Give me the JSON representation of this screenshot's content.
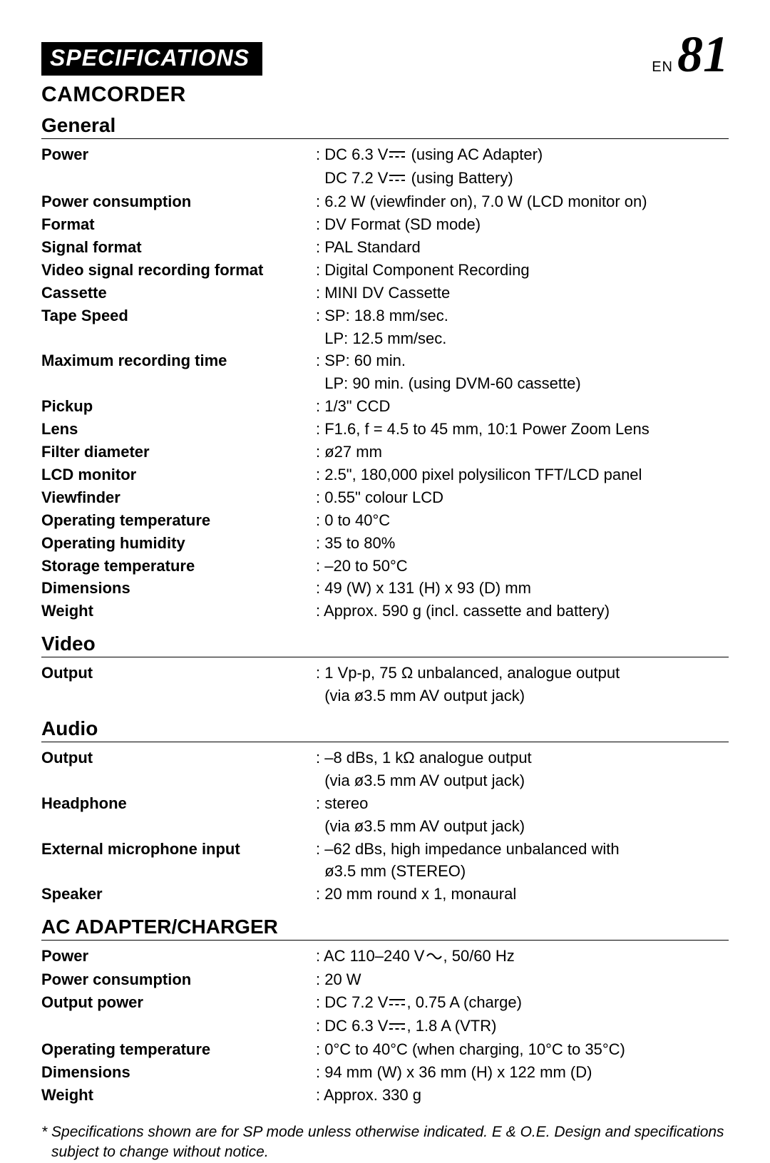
{
  "header": {
    "banner": "SPECIFICATIONS",
    "lang_label": "EN",
    "page_number": "81"
  },
  "product_heading": "CAMCORDER",
  "sections": [
    {
      "title": "General",
      "rows": [
        {
          "label": "Power",
          "lines": [
            {
              "parts": [
                ": DC 6.3 V",
                "{DC}",
                " (using AC Adapter)"
              ]
            },
            {
              "parts": [
                "  DC 7.2 V",
                "{DC}",
                " (using Battery)"
              ]
            }
          ]
        },
        {
          "label": "Power consumption",
          "lines": [
            {
              "parts": [
                ": 6.2 W (viewfinder on), 7.0 W (LCD monitor on)"
              ]
            }
          ]
        },
        {
          "label": "Format",
          "lines": [
            {
              "parts": [
                ": DV Format (SD mode)"
              ]
            }
          ]
        },
        {
          "label": "Signal format",
          "lines": [
            {
              "parts": [
                ": PAL Standard"
              ]
            }
          ]
        },
        {
          "label": "Video signal recording format",
          "lines": [
            {
              "parts": [
                ": Digital Component Recording"
              ]
            }
          ]
        },
        {
          "label": "Cassette",
          "lines": [
            {
              "parts": [
                ": MINI DV Cassette"
              ]
            }
          ]
        },
        {
          "label": "Tape Speed",
          "lines": [
            {
              "parts": [
                ": SP: 18.8 mm/sec."
              ]
            },
            {
              "parts": [
                "  LP: 12.5 mm/sec."
              ]
            }
          ]
        },
        {
          "label": "Maximum recording time",
          "lines": [
            {
              "parts": [
                ": SP: 60 min."
              ]
            },
            {
              "parts": [
                "  LP: 90 min. (using DVM-60 cassette)"
              ]
            }
          ]
        },
        {
          "label": "Pickup",
          "lines": [
            {
              "parts": [
                ": 1/3\" CCD"
              ]
            }
          ]
        },
        {
          "label": "Lens",
          "lines": [
            {
              "parts": [
                ": F1.6, f = 4.5 to 45 mm, 10:1 Power Zoom Lens"
              ]
            }
          ]
        },
        {
          "label": "Filter diameter",
          "lines": [
            {
              "parts": [
                ": ø27 mm"
              ]
            }
          ]
        },
        {
          "label": "LCD monitor",
          "lines": [
            {
              "parts": [
                ": 2.5\", 180,000 pixel polysilicon TFT/LCD panel"
              ]
            }
          ]
        },
        {
          "label": "Viewfinder",
          "lines": [
            {
              "parts": [
                ": 0.55\" colour LCD"
              ]
            }
          ]
        },
        {
          "label": "Operating temperature",
          "lines": [
            {
              "parts": [
                ": 0 to 40°C"
              ]
            }
          ]
        },
        {
          "label": "Operating humidity",
          "lines": [
            {
              "parts": [
                ": 35 to 80%"
              ]
            }
          ]
        },
        {
          "label": "Storage temperature",
          "lines": [
            {
              "parts": [
                ": –20 to 50°C"
              ]
            }
          ]
        },
        {
          "label": "Dimensions",
          "lines": [
            {
              "parts": [
                ": 49 (W) x 131 (H) x 93 (D) mm"
              ]
            }
          ]
        },
        {
          "label": "Weight",
          "lines": [
            {
              "parts": [
                ": Approx. 590 g (incl. cassette and battery)"
              ]
            }
          ]
        }
      ]
    },
    {
      "title": "Video",
      "rows": [
        {
          "label": "Output",
          "lines": [
            {
              "parts": [
                ": 1 Vp-p, 75 Ω unbalanced, analogue output"
              ]
            },
            {
              "parts": [
                "  (via ø3.5 mm AV output jack)"
              ]
            }
          ]
        }
      ]
    },
    {
      "title": "Audio",
      "rows": [
        {
          "label": "Output",
          "lines": [
            {
              "parts": [
                ": –8 dBs, 1 kΩ analogue output"
              ]
            },
            {
              "parts": [
                "  (via ø3.5 mm AV output jack)"
              ]
            }
          ]
        },
        {
          "label": "Headphone",
          "lines": [
            {
              "parts": [
                ": stereo"
              ]
            },
            {
              "parts": [
                "  (via ø3.5 mm AV output jack)"
              ]
            }
          ]
        },
        {
          "label": "External microphone input",
          "lines": [
            {
              "parts": [
                ": –62 dBs, high impedance unbalanced with"
              ]
            },
            {
              "parts": [
                "  ø3.5 mm (STEREO)"
              ]
            }
          ]
        },
        {
          "label": "Speaker",
          "lines": [
            {
              "parts": [
                ": 20 mm round x 1, monaural"
              ]
            }
          ]
        }
      ]
    },
    {
      "title": "AC ADAPTER/CHARGER",
      "rows": [
        {
          "label": "Power",
          "lines": [
            {
              "parts": [
                ": AC 110–240 V",
                "{AC}",
                ", 50/60 Hz"
              ]
            }
          ]
        },
        {
          "label": "Power consumption",
          "lines": [
            {
              "parts": [
                ": 20 W"
              ]
            }
          ]
        },
        {
          "label": "Output power",
          "lines": [
            {
              "parts": [
                ": DC 7.2 V",
                "{DC}",
                ", 0.75 A (charge)"
              ]
            },
            {
              "parts": [
                ": DC 6.3 V",
                "{DC}",
                ", 1.8 A (VTR)"
              ]
            }
          ]
        },
        {
          "label": "Operating temperature",
          "lines": [
            {
              "parts": [
                ": 0°C to 40°C (when charging, 10°C to 35°C)"
              ]
            }
          ]
        },
        {
          "label": "Dimensions",
          "lines": [
            {
              "parts": [
                ": 94 mm (W) x 36 mm (H) x 122 mm (D)"
              ]
            }
          ]
        },
        {
          "label": "Weight",
          "lines": [
            {
              "parts": [
                ": Approx. 330 g"
              ]
            }
          ]
        }
      ]
    }
  ],
  "footnote": "* Specifications shown are for SP mode unless otherwise indicated. E & O.E. Design and specifications subject to change without notice."
}
